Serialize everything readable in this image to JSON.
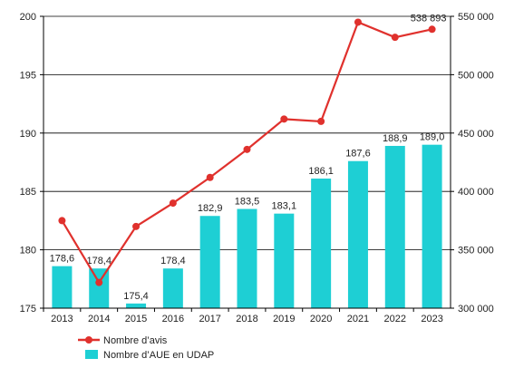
{
  "chart_data": {
    "type": "bar+line",
    "categories": [
      "2013",
      "2014",
      "2015",
      "2016",
      "2017",
      "2018",
      "2019",
      "2020",
      "2021",
      "2022",
      "2023"
    ],
    "series": [
      {
        "name": "Nombre d’AUE en UDAP",
        "type": "bar",
        "axis": "left",
        "color": "#1ecfd4",
        "values": [
          178.6,
          178.4,
          175.4,
          178.4,
          182.9,
          183.5,
          183.1,
          186.1,
          187.6,
          188.9,
          189.0
        ],
        "labels": [
          "178,6",
          "178,4",
          "175,4",
          "178,4",
          "182,9",
          "183,5",
          "183,1",
          "186,1",
          "187,6",
          "188,9",
          "189,0"
        ]
      },
      {
        "name": "Nombre d’avis",
        "type": "line",
        "axis": "right",
        "color": "#e0312d",
        "values": [
          375000,
          322000,
          370000,
          390000,
          412000,
          436000,
          462000,
          460000,
          545000,
          532000,
          538893
        ],
        "annotation": {
          "index": 10,
          "label": "538 893"
        }
      }
    ],
    "y_left": {
      "min": 175,
      "max": 200,
      "ticks": [
        175,
        180,
        185,
        190,
        195,
        200
      ],
      "tick_labels": [
        "175",
        "180",
        "185",
        "190",
        "195",
        "200"
      ]
    },
    "y_right": {
      "min": 300000,
      "max": 550000,
      "ticks": [
        300000,
        350000,
        400000,
        450000,
        500000,
        550000
      ],
      "tick_labels": [
        "300 000",
        "350 000",
        "400 000",
        "450 000",
        "500 000",
        "550 000"
      ]
    },
    "grid": true,
    "legend": {
      "placement": "bottom-left",
      "items": [
        {
          "label": "Nombre d’avis",
          "kind": "line-marker",
          "color": "#e0312d"
        },
        {
          "label": "Nombre d’AUE en UDAP",
          "kind": "box",
          "color": "#1ecfd4"
        }
      ]
    }
  }
}
